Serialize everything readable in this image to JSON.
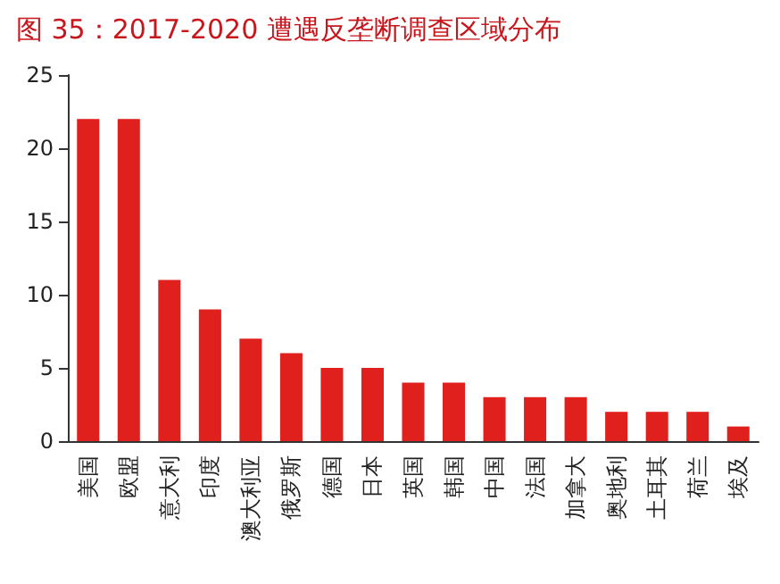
{
  "chart_data": {
    "type": "bar",
    "title": "图 35：2017-2020 遭遇反垄断调查区域分布",
    "categories": [
      "美国",
      "欧盟",
      "意大利",
      "印度",
      "澳大利亚",
      "俄罗斯",
      "德国",
      "日本",
      "英国",
      "韩国",
      "中国",
      "法国",
      "加拿大",
      "奥地利",
      "土耳其",
      "荷兰",
      "埃及"
    ],
    "values": [
      22,
      22,
      11,
      9,
      7,
      6,
      5,
      5,
      4,
      4,
      3,
      3,
      3,
      2,
      2,
      2,
      1
    ],
    "color": "#e0201c",
    "ylim": [
      0,
      25
    ],
    "yticks": [
      0,
      5,
      10,
      15,
      20,
      25
    ],
    "grid": false
  }
}
